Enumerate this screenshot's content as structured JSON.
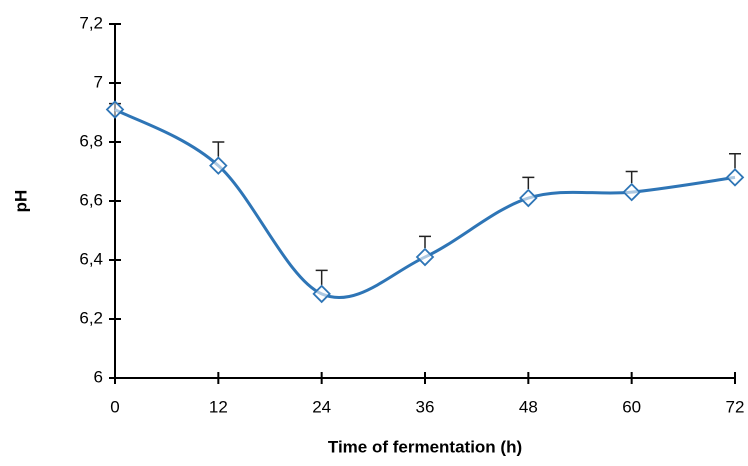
{
  "chart_data": {
    "type": "line",
    "x_label": "Time of fermentation (h)",
    "y_label": "pH",
    "x": [
      0,
      12,
      24,
      36,
      48,
      60,
      72
    ],
    "series": [
      {
        "name": "pH",
        "color": "#2e75b6",
        "values": [
          6.91,
          6.72,
          6.285,
          6.41,
          6.61,
          6.63,
          6.68
        ],
        "errors": [
          0.02,
          0.08,
          0.08,
          0.07,
          0.07,
          0.07,
          0.08
        ]
      }
    ],
    "xlim": [
      0,
      72
    ],
    "xticks": [
      0,
      12,
      24,
      36,
      48,
      60,
      72
    ],
    "ylim": [
      6,
      7.2
    ],
    "yticks": [
      6,
      {
        "value": 6.2,
        "label": "6,2"
      },
      {
        "value": 6.4,
        "label": "6,4"
      },
      {
        "value": 6.6,
        "label": "6,6"
      },
      {
        "value": 6.8,
        "label": "6,8"
      },
      7,
      {
        "value": 7.2,
        "label": "7,2"
      }
    ],
    "grid": false
  }
}
